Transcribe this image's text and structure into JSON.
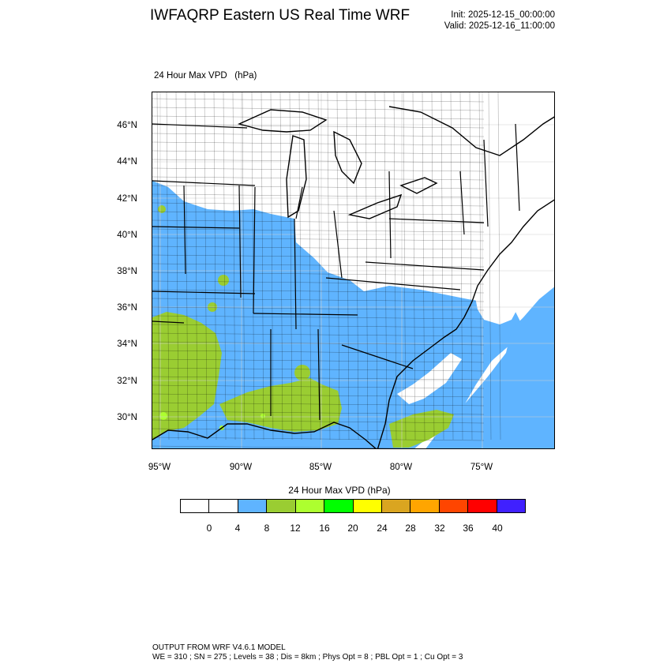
{
  "header": {
    "title": "IWFAQRP Eastern US Real Time WRF",
    "init": "Init: 2025-12-15_00:00:00",
    "valid": "Valid: 2025-12-16_11:00:00"
  },
  "map": {
    "field_label": "24 Hour Max VPD   (hPa)",
    "lat_labels": [
      "46°N",
      "44°N",
      "42°N",
      "40°N",
      "38°N",
      "36°N",
      "34°N",
      "32°N",
      "30°N"
    ],
    "lon_labels": [
      "95°W",
      "90°W",
      "85°W",
      "80°W",
      "75°W"
    ],
    "colors": {
      "ocean": "#5fb4ff",
      "land_low": "#ffffff",
      "vpd_4_8": "#5fb4ff",
      "vpd_8_12": "#9acd32",
      "vpd_12_16": "#adff2f",
      "boundary": "#000000"
    }
  },
  "colorbar": {
    "title": "24 Hour Max VPD  (hPa)",
    "colors": [
      "#ffffff",
      "#ffffff",
      "#5fb4ff",
      "#9acd32",
      "#adff2f",
      "#00ff00",
      "#ffff00",
      "#daa520",
      "#ffa500",
      "#ff4500",
      "#ff0000",
      "#4020ff"
    ],
    "labels": [
      "0",
      "4",
      "8",
      "12",
      "16",
      "20",
      "24",
      "28",
      "32",
      "36",
      "40"
    ]
  },
  "footer": {
    "line1": "OUTPUT FROM WRF V4.6.1 MODEL",
    "line2": "WE = 310 ; SN = 275 ; Levels = 38 ; Dis = 8km ; Phys Opt = 8 ; PBL Opt = 1 ; Cu Opt = 3"
  }
}
